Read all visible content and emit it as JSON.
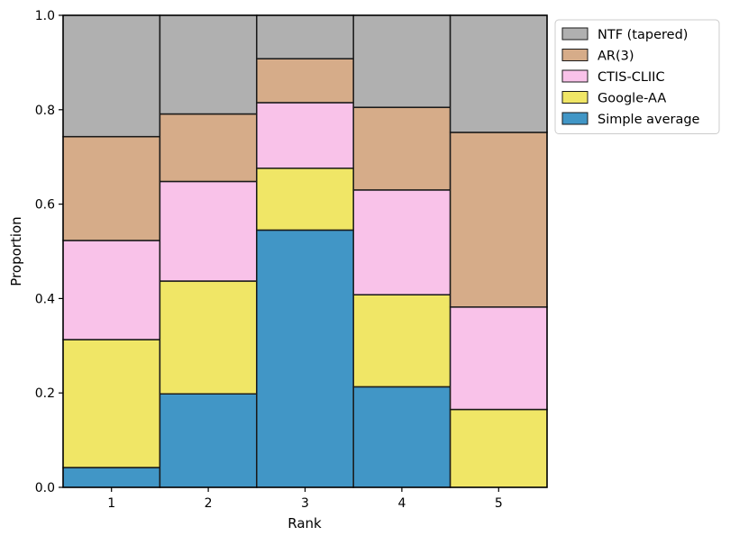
{
  "chart_data": {
    "type": "bar",
    "stacked": true,
    "xlabel": "Rank",
    "ylabel": "Proportion",
    "ylim": [
      0,
      1
    ],
    "yticks": [
      "0.0",
      "0.2",
      "0.4",
      "0.6",
      "0.8",
      "1.0"
    ],
    "categories": [
      "1",
      "2",
      "3",
      "4",
      "5"
    ],
    "legend_position": "outside top-right",
    "series": [
      {
        "name": "Simple average",
        "color": "#4196c6",
        "values": [
          0.042,
          0.198,
          0.545,
          0.213,
          0.0
        ]
      },
      {
        "name": "Google-AA",
        "color": "#f0e666",
        "values": [
          0.271,
          0.239,
          0.131,
          0.195,
          0.165
        ]
      },
      {
        "name": "CTIS-CLIIC",
        "color": "#f9c2e9",
        "values": [
          0.21,
          0.211,
          0.139,
          0.222,
          0.217
        ]
      },
      {
        "name": "AR(3)",
        "color": "#d6ac89",
        "values": [
          0.22,
          0.143,
          0.093,
          0.175,
          0.37
        ]
      },
      {
        "name": "NTF (tapered)",
        "color": "#b0b0b0",
        "values": [
          0.257,
          0.209,
          0.092,
          0.195,
          0.248
        ]
      }
    ],
    "legend_order": [
      "NTF (tapered)",
      "AR(3)",
      "CTIS-CLIIC",
      "Google-AA",
      "Simple average"
    ]
  }
}
